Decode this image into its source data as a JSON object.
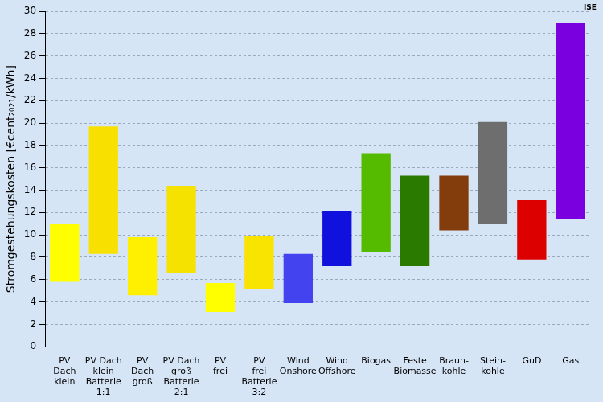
{
  "chart_data": {
    "type": "bar",
    "annotation": "ISE",
    "ylabel": "Stromgestehungskosten [€cent₂₀₂₁/kWh]",
    "categories": [
      "PV\nDach\nklein",
      "PV Dach\nklein\nBatterie\n1:1",
      "PV\nDach\ngroß",
      "PV Dach\ngroß\nBatterie\n2:1",
      "PV\nfrei",
      "PV\nfrei\nBatterie\n3:2",
      "Wind\nOnshore",
      "Wind\nOffshore",
      "Biogas",
      "Feste\nBiomasse",
      "Braun-\nkohle",
      "Stein-\nkohle",
      "GuD",
      "Gas"
    ],
    "values": [
      [
        5.8,
        11.0
      ],
      [
        8.3,
        19.7
      ],
      [
        4.6,
        9.8
      ],
      [
        6.6,
        14.4
      ],
      [
        3.1,
        5.7
      ],
      [
        5.2,
        9.9
      ],
      [
        3.9,
        8.3
      ],
      [
        7.2,
        12.1
      ],
      [
        8.5,
        17.3
      ],
      [
        7.2,
        15.3
      ],
      [
        10.4,
        15.3
      ],
      [
        11.0,
        20.1
      ],
      [
        7.8,
        13.1
      ],
      [
        11.4,
        29.0
      ]
    ],
    "colors": [
      "#ffff00",
      "#f8e000",
      "#ffef00",
      "#f6e200",
      "#ffff00",
      "#f8e400",
      "#4343f0",
      "#1111dd",
      "#55bb00",
      "#2a7a00",
      "#833c0b",
      "#6e6e6e",
      "#dd0000",
      "#7b00e0"
    ],
    "ylim": [
      0,
      30
    ],
    "yticks": [
      0,
      2,
      4,
      6,
      8,
      10,
      12,
      14,
      16,
      18,
      20,
      22,
      24,
      26,
      28,
      30
    ],
    "grid": true
  }
}
